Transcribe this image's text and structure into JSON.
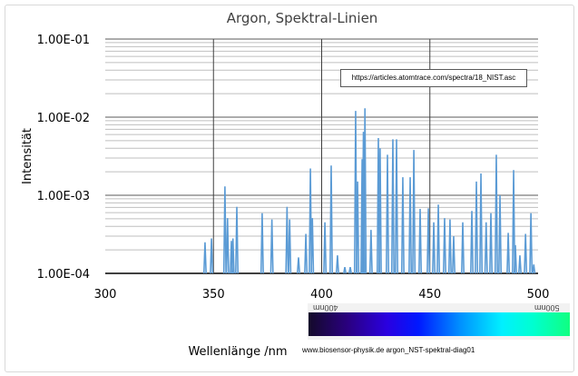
{
  "chart_data": {
    "type": "line",
    "title": "Argon, Spektral-Linien",
    "xlabel": "Wellenlänge /nm",
    "ylabel": "Intensität",
    "xlim": [
      300,
      500
    ],
    "ylim": [
      0.0001,
      0.1
    ],
    "yscale": "log",
    "grid": true,
    "x_ticks": [
      "300",
      "350",
      "400",
      "450",
      "500"
    ],
    "y_ticks": [
      "1.00E-04",
      "1.00E-03",
      "1.00E-02",
      "1.00E-01"
    ],
    "series_color": "#5b9bd5",
    "lines": [
      [
        346.1,
        0.00025
      ],
      [
        349.1,
        0.00028
      ],
      [
        355.3,
        0.0013
      ],
      [
        356.5,
        0.00051
      ],
      [
        358.3,
        0.00026
      ],
      [
        359.0,
        0.00028
      ],
      [
        360.8,
        0.00071
      ],
      [
        372.5,
        0.00059
      ],
      [
        377.0,
        0.00049
      ],
      [
        384.0,
        0.00071
      ],
      [
        385.2,
        0.00049
      ],
      [
        389.3,
        0.00016
      ],
      [
        392.7,
        0.00032
      ],
      [
        394.8,
        0.0022
      ],
      [
        395.7,
        0.00051
      ],
      [
        401.5,
        0.00045
      ],
      [
        404.4,
        0.0024
      ],
      [
        407.3,
        0.00017
      ],
      [
        410.7,
        0.00012
      ],
      [
        413.2,
        0.00012
      ],
      [
        415.7,
        0.012
      ],
      [
        416.6,
        0.0015
      ],
      [
        418.7,
        0.0029
      ],
      [
        419.3,
        0.0065
      ],
      [
        420.0,
        0.013
      ],
      [
        422.8,
        0.00036
      ],
      [
        426.2,
        0.0054
      ],
      [
        427.0,
        0.004
      ],
      [
        430.4,
        0.0033
      ],
      [
        432.9,
        0.0052
      ],
      [
        434.6,
        0.0052
      ],
      [
        437.5,
        0.0017
      ],
      [
        440.9,
        0.0017
      ],
      [
        442.6,
        0.0038
      ],
      [
        445.5,
        0.00067
      ],
      [
        449.3,
        0.00068
      ],
      [
        451.8,
        0.00045
      ],
      [
        453.9,
        0.00076
      ],
      [
        456.8,
        0.00051
      ],
      [
        459.3,
        0.00049
      ],
      [
        461.0,
        0.0003
      ],
      [
        465.2,
        0.00045
      ],
      [
        469.4,
        0.00063
      ],
      [
        471.5,
        0.0015
      ],
      [
        473.6,
        0.0019
      ],
      [
        476.0,
        0.00045
      ],
      [
        478.2,
        0.00059
      ],
      [
        480.7,
        0.0033
      ],
      [
        482.4,
        0.001
      ],
      [
        486.2,
        0.00033
      ],
      [
        488.7,
        0.0021
      ],
      [
        489.5,
        0.00023
      ],
      [
        491.6,
        0.00017
      ],
      [
        494.2,
        0.00032
      ],
      [
        496.7,
        0.00059
      ],
      [
        498.0,
        0.00013
      ]
    ],
    "annotation": "https://articles.atomtrace.com/spectra/18_NIST.asc"
  },
  "spectrum_strip": {
    "label_left": "400nm",
    "label_right": "500nm"
  },
  "footer": "www.biosensor-physik.de argon_NST-spektral-diag01"
}
